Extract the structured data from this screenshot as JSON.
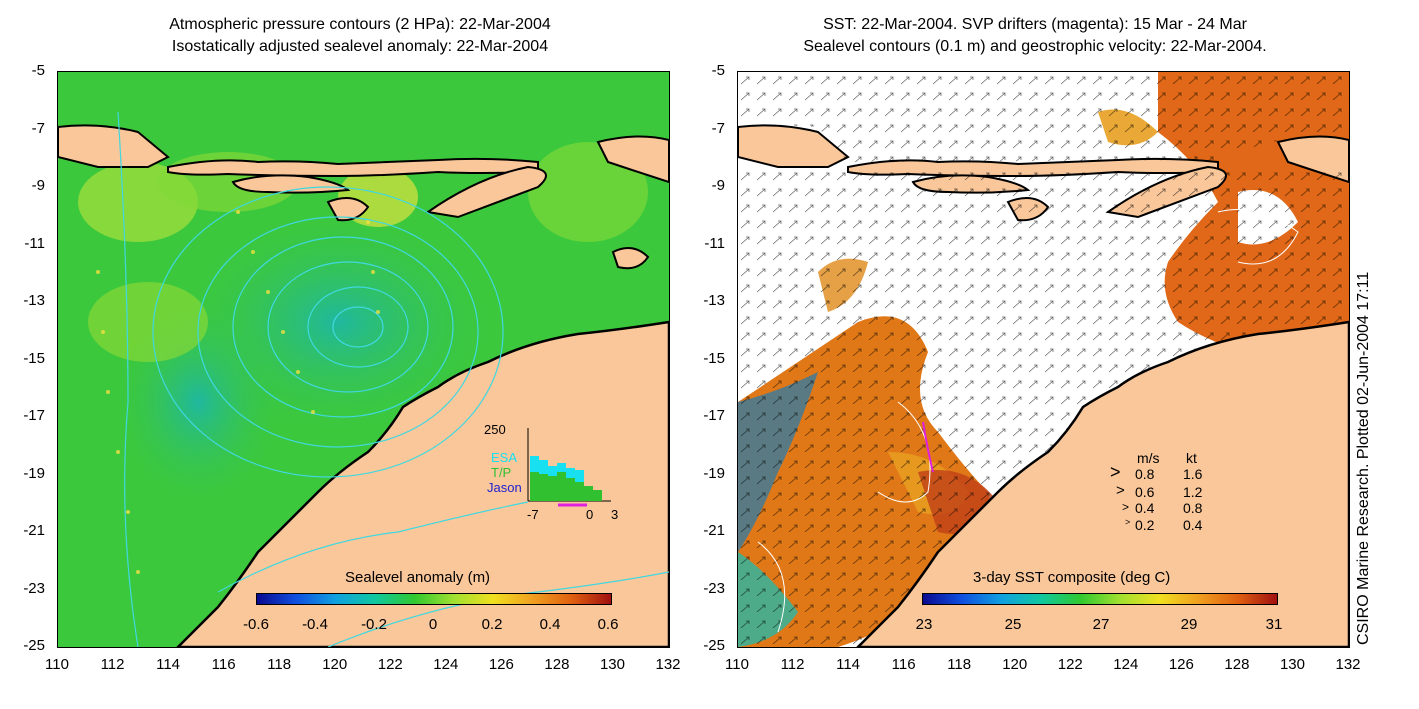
{
  "left_panel": {
    "title_line1": "Atmospheric pressure contours (2 HPa): 22-Mar-2004",
    "title_line2": "Isostatically adjusted sealevel anomaly: 22-Mar-2004",
    "colorbar_title": "Sealevel anomaly (m)",
    "colorbar_ticks": [
      "-0.6",
      "-0.4",
      "-0.2",
      "0",
      "0.2",
      "0.4",
      "0.6"
    ],
    "inset": {
      "max_label": "250",
      "series_labels": [
        "ESA",
        "T/P",
        "Jason"
      ],
      "series_colors": [
        "#18e0f0",
        "#30c030",
        "#2020d0"
      ],
      "x_ticks": [
        "-7",
        "0",
        "3"
      ]
    }
  },
  "right_panel": {
    "title_line1": "SST: 22-Mar-2004. SVP drifters (magenta): 15 Mar - 24 Mar",
    "title_line2": "Sealevel contours (0.1 m) and geostrophic velocity: 22-Mar-2004.",
    "colorbar_title": "3-day SST composite (deg C)",
    "colorbar_ticks": [
      "23",
      "25",
      "27",
      "29",
      "31"
    ],
    "velocity_legend": {
      "header_ms": "m/s",
      "header_kt": "kt",
      "rows": [
        {
          "ms": "0.8",
          "kt": "1.6"
        },
        {
          "ms": "0.6",
          "kt": "1.2"
        },
        {
          "ms": "0.4",
          "kt": "0.8"
        },
        {
          "ms": "0.2",
          "kt": "0.4"
        }
      ]
    }
  },
  "axes": {
    "y_ticks": [
      "-5",
      "-7",
      "-9",
      "-11",
      "-13",
      "-15",
      "-17",
      "-19",
      "-21",
      "-23",
      "-25"
    ],
    "x_ticks": [
      "110",
      "112",
      "114",
      "116",
      "118",
      "120",
      "122",
      "124",
      "126",
      "128",
      "130",
      "132"
    ]
  },
  "credit": "CSIRO Marine Research. Plotted 02-Jun-2004 17:11",
  "colors": {
    "land": "#f9c79a",
    "ocean_left": "#3cc83c",
    "ocean_right": "#ffffff",
    "contour": "#40d8e0",
    "sst_warm": "#e07010"
  }
}
